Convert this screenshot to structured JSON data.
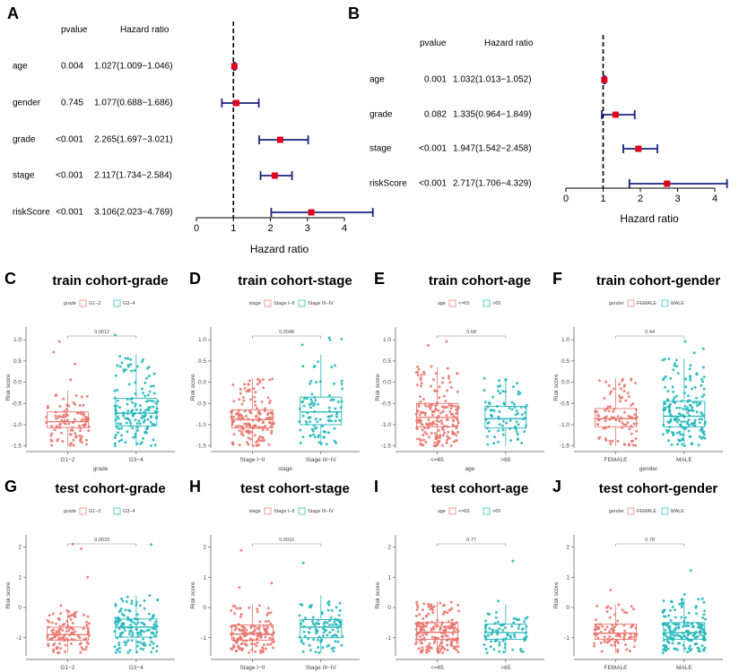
{
  "colors": {
    "groupA": "#e8736c",
    "groupB": "#1fb5b8",
    "forest_ci": "#1a237e",
    "forest_point": "#e3001b"
  },
  "chart_data": [
    {
      "panel": "A",
      "type": "forest",
      "header_pvalue": "pvalue",
      "header_hr": "Hazard ratio",
      "xlabel": "Hazard ratio",
      "xlim": [
        0,
        4.3
      ],
      "ref_line": 1,
      "ticks": [
        0,
        1,
        2,
        3,
        4
      ],
      "rows": [
        {
          "label": "age",
          "pvalue": "0.004",
          "hr_text": "1.027(1.009−1.046)",
          "hr": 1.027,
          "low": 1.009,
          "high": 1.046
        },
        {
          "label": "gender",
          "pvalue": "0.745",
          "hr_text": "1.077(0.688−1.686)",
          "hr": 1.077,
          "low": 0.688,
          "high": 1.686
        },
        {
          "label": "grade",
          "pvalue": "<0.001",
          "hr_text": "2.265(1.697−3.021)",
          "hr": 2.265,
          "low": 1.697,
          "high": 3.021
        },
        {
          "label": "stage",
          "pvalue": "<0.001",
          "hr_text": "2.117(1.734−2.584)",
          "hr": 2.117,
          "low": 1.734,
          "high": 2.584
        },
        {
          "label": "riskScore",
          "pvalue": "<0.001",
          "hr_text": "3.106(2.023−4.769)",
          "hr": 3.106,
          "low": 2.023,
          "high": 4.769
        }
      ]
    },
    {
      "panel": "B",
      "type": "forest",
      "header_pvalue": "pvalue",
      "header_hr": "Hazard ratio",
      "xlabel": "Hazard ratio",
      "xlim": [
        0,
        4.3
      ],
      "ref_line": 1,
      "ticks": [
        0,
        1,
        2,
        3,
        4
      ],
      "rows": [
        {
          "label": "age",
          "pvalue": "0.001",
          "hr_text": "1.032(1.013−1.052)",
          "hr": 1.032,
          "low": 1.013,
          "high": 1.052
        },
        {
          "label": "grade",
          "pvalue": "0.082",
          "hr_text": "1.335(0.964−1.849)",
          "hr": 1.335,
          "low": 0.964,
          "high": 1.849
        },
        {
          "label": "stage",
          "pvalue": "<0.001",
          "hr_text": "1.947(1.542−2.458)",
          "hr": 1.947,
          "low": 1.542,
          "high": 2.458
        },
        {
          "label": "riskScore",
          "pvalue": "<0.001",
          "hr_text": "2.717(1.706−4.329)",
          "hr": 2.717,
          "low": 1.706,
          "high": 4.329
        }
      ]
    },
    {
      "panel": "C",
      "type": "box",
      "title": "train cohort-grade",
      "legend_title": "grade",
      "categories": [
        "G1−2",
        "G3−4"
      ],
      "xlabel": "grade",
      "ylabel": "Risk score",
      "ylim": [
        -1.55,
        1.3
      ],
      "yticks": [
        "-1.5",
        "-1.0",
        "-0.5",
        "0.0",
        "0.5",
        "1.0"
      ],
      "ytick_values": [
        -1.5,
        -1.0,
        -0.5,
        0.0,
        0.5,
        1.0
      ],
      "pvalue": "0.0012",
      "boxes": [
        {
          "q1": -1.07,
          "median": -0.93,
          "q3": -0.7,
          "wlo": -1.5,
          "whi": -0.2,
          "n": 110
        },
        {
          "q1": -1.03,
          "median": -0.73,
          "q3": -0.38,
          "wlo": -1.5,
          "whi": 0.65,
          "n": 150
        }
      ]
    },
    {
      "panel": "D",
      "type": "box",
      "title": "train cohort-stage",
      "legend_title": "stage",
      "categories": [
        "Stage I−II",
        "Stage III−IV"
      ],
      "xlabel": "stage",
      "ylabel": "Risk score",
      "ylim": [
        -1.55,
        1.3
      ],
      "yticks": [
        "-1.5",
        "-1.0",
        "-0.5",
        "0.0",
        "0.5",
        "1.0"
      ],
      "ytick_values": [
        -1.5,
        -1.0,
        -0.5,
        0.0,
        0.5,
        1.0
      ],
      "pvalue": "0.0046",
      "boxes": [
        {
          "q1": -1.08,
          "median": -0.88,
          "q3": -0.65,
          "wlo": -1.5,
          "whi": 0.1,
          "n": 160
        },
        {
          "q1": -1.0,
          "median": -0.7,
          "q3": -0.35,
          "wlo": -1.5,
          "whi": 0.65,
          "n": 95
        }
      ]
    },
    {
      "panel": "E",
      "type": "box",
      "title": "train cohort-age",
      "legend_title": "age",
      "categories": [
        "<=65",
        ">65"
      ],
      "xlabel": "age",
      "ylabel": "Risk score",
      "ylim": [
        -1.55,
        1.3
      ],
      "yticks": [
        "-1.5",
        "-1.0",
        "-0.5",
        "0.0",
        "0.5",
        "1.0"
      ],
      "ytick_values": [
        -1.5,
        -1.0,
        -0.5,
        0.0,
        0.5,
        1.0
      ],
      "pvalue": "0.68",
      "boxes": [
        {
          "q1": -1.05,
          "median": -0.83,
          "q3": -0.5,
          "wlo": -1.5,
          "whi": 0.35,
          "n": 190
        },
        {
          "q1": -1.08,
          "median": -0.86,
          "q3": -0.57,
          "wlo": -1.5,
          "whi": 0.1,
          "n": 80
        }
      ]
    },
    {
      "panel": "F",
      "type": "box",
      "title": "train cohort-gender",
      "legend_title": "gender",
      "categories": [
        "FEMALE",
        "MALE"
      ],
      "xlabel": "gender",
      "ylabel": "Risk score",
      "ylim": [
        -1.55,
        1.3
      ],
      "yticks": [
        "-1.5",
        "-1.0",
        "-0.5",
        "0.0",
        "0.5",
        "1.0"
      ],
      "ytick_values": [
        -1.5,
        -1.0,
        -0.5,
        0.0,
        0.5,
        1.0
      ],
      "pvalue": "0.44",
      "boxes": [
        {
          "q1": -1.05,
          "median": -0.86,
          "q3": -0.62,
          "wlo": -1.5,
          "whi": 0.1,
          "n": 90
        },
        {
          "q1": -1.05,
          "median": -0.8,
          "q3": -0.45,
          "wlo": -1.5,
          "whi": 0.55,
          "n": 175
        }
      ]
    },
    {
      "panel": "G",
      "type": "box",
      "title": "test cohort-grade",
      "legend_title": "grade",
      "categories": [
        "G1−2",
        "G3−4"
      ],
      "xlabel": "grade",
      "ylabel": "Risk score",
      "ylim": [
        -1.6,
        2.4
      ],
      "yticks": [
        "-1",
        "0",
        "1",
        "2"
      ],
      "ytick_values": [
        -1,
        0,
        1,
        2
      ],
      "pvalue": "0.0033",
      "boxes": [
        {
          "q1": -1.08,
          "median": -0.9,
          "q3": -0.65,
          "wlo": -1.5,
          "whi": -0.1,
          "n": 120
        },
        {
          "q1": -0.98,
          "median": -0.65,
          "q3": -0.38,
          "wlo": -1.5,
          "whi": 0.4,
          "n": 140
        }
      ]
    },
    {
      "panel": "H",
      "type": "box",
      "title": "test cohort-stage",
      "legend_title": "stage",
      "categories": [
        "Stage I−II",
        "Stage III−IV"
      ],
      "xlabel": "stage",
      "ylabel": "Risk score",
      "ylim": [
        -1.6,
        2.4
      ],
      "yticks": [
        "-1",
        "0",
        "1",
        "2"
      ],
      "ytick_values": [
        -1,
        0,
        1,
        2
      ],
      "pvalue": "0.0015",
      "boxes": [
        {
          "q1": -1.08,
          "median": -0.88,
          "q3": -0.58,
          "wlo": -1.5,
          "whi": 0.1,
          "n": 150
        },
        {
          "q1": -1.0,
          "median": -0.65,
          "q3": -0.4,
          "wlo": -1.5,
          "whi": 0.4,
          "n": 100
        }
      ]
    },
    {
      "panel": "I",
      "type": "box",
      "title": "test cohort-age",
      "legend_title": "age",
      "categories": [
        "<=65",
        ">65"
      ],
      "xlabel": "age",
      "ylabel": "Risk score",
      "ylim": [
        -1.6,
        2.4
      ],
      "yticks": [
        "-1",
        "0",
        "1",
        "2"
      ],
      "ytick_values": [
        -1,
        0,
        1,
        2
      ],
      "pvalue": "0.77",
      "boxes": [
        {
          "q1": -1.05,
          "median": -0.82,
          "q3": -0.5,
          "wlo": -1.5,
          "whi": 0.2,
          "n": 190
        },
        {
          "q1": -1.05,
          "median": -0.83,
          "q3": -0.55,
          "wlo": -1.5,
          "whi": 0.1,
          "n": 80
        }
      ]
    },
    {
      "panel": "J",
      "type": "box",
      "title": "test cohort-gender",
      "legend_title": "gender",
      "categories": [
        "FEMALE",
        "MALE"
      ],
      "xlabel": "gender",
      "ylabel": "Risk score",
      "ylim": [
        -1.6,
        2.4
      ],
      "yticks": [
        "-1",
        "0",
        "1",
        "2"
      ],
      "ytick_values": [
        -1,
        0,
        1,
        2
      ],
      "pvalue": "0.78",
      "boxes": [
        {
          "q1": -1.05,
          "median": -0.85,
          "q3": -0.55,
          "wlo": -1.5,
          "whi": 0.1,
          "n": 90
        },
        {
          "q1": -1.05,
          "median": -0.83,
          "q3": -0.5,
          "wlo": -1.5,
          "whi": 0.3,
          "n": 175
        }
      ]
    }
  ]
}
